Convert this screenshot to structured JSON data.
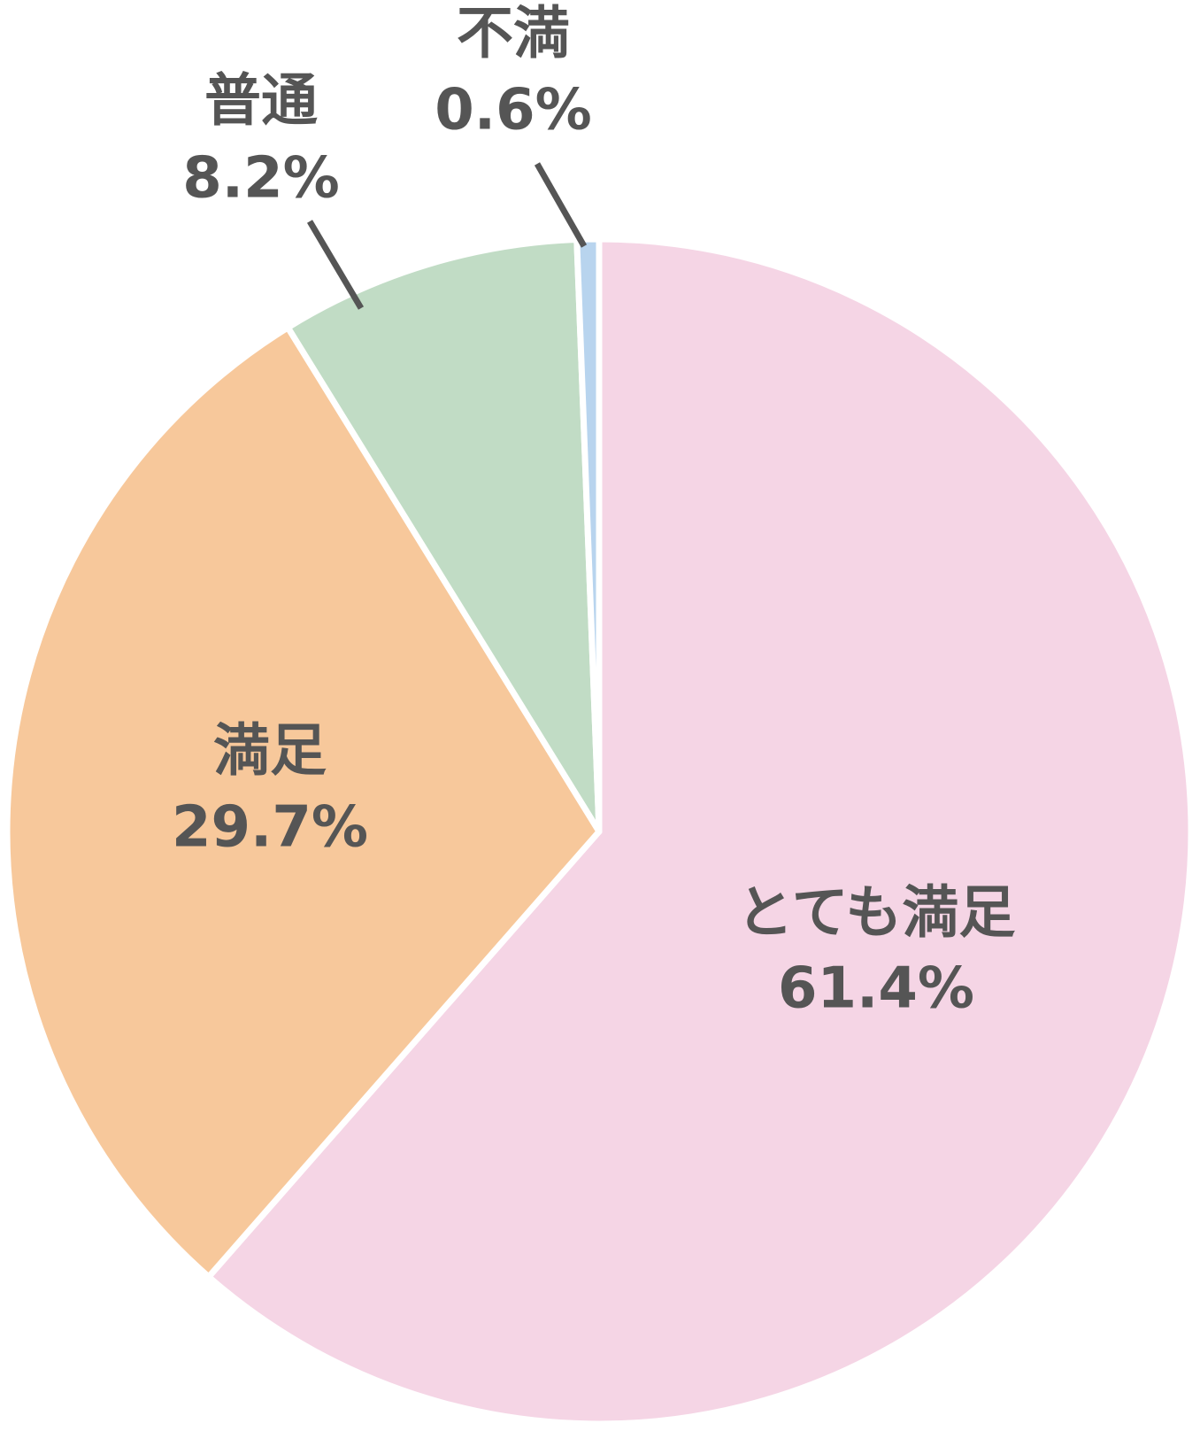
{
  "chart_data": {
    "type": "pie",
    "categories": [
      "とても満足",
      "満足",
      "普通",
      "不満"
    ],
    "values": [
      61.4,
      29.7,
      8.2,
      0.6
    ],
    "value_labels": [
      "61.4%",
      "29.7%",
      "8.2%",
      "0.6%"
    ],
    "colors": [
      "#f5d5e5",
      "#f7c89b",
      "#c1dcc5",
      "#b8d4ee"
    ]
  }
}
